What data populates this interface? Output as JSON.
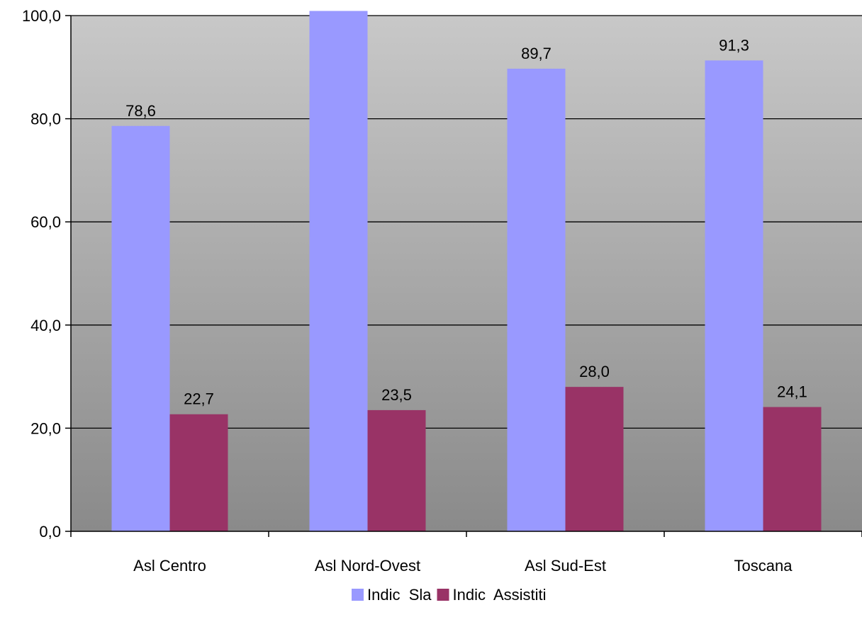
{
  "chart_data": {
    "type": "bar",
    "categories": [
      "Asl Centro",
      "Asl Nord-Ovest",
      "Asl Sud-Est",
      "Toscana"
    ],
    "series": [
      {
        "name": "Indic  Sla",
        "values": [
          78.6,
          100.9,
          89.7,
          91.3
        ],
        "labels": [
          "78,6",
          "",
          "89,7",
          "91,3"
        ],
        "color": "#9999ff"
      },
      {
        "name": "Indic  Assistiti",
        "values": [
          22.7,
          23.5,
          28.0,
          24.1
        ],
        "labels": [
          "22,7",
          "23,5",
          "28,0",
          "24,1"
        ],
        "color": "#993366"
      }
    ],
    "ylim": [
      0,
      100
    ],
    "yticks": [
      0,
      20,
      40,
      60,
      80,
      100
    ],
    "ytick_labels": [
      "0,0",
      "20,0",
      "40,0",
      "60,0",
      "80,0",
      "100,0"
    ],
    "grid": true,
    "legend_position": "bottom",
    "background_gradient": [
      "#c8c8c8",
      "#8a8a8a"
    ],
    "title": "",
    "xlabel": "",
    "ylabel": ""
  }
}
